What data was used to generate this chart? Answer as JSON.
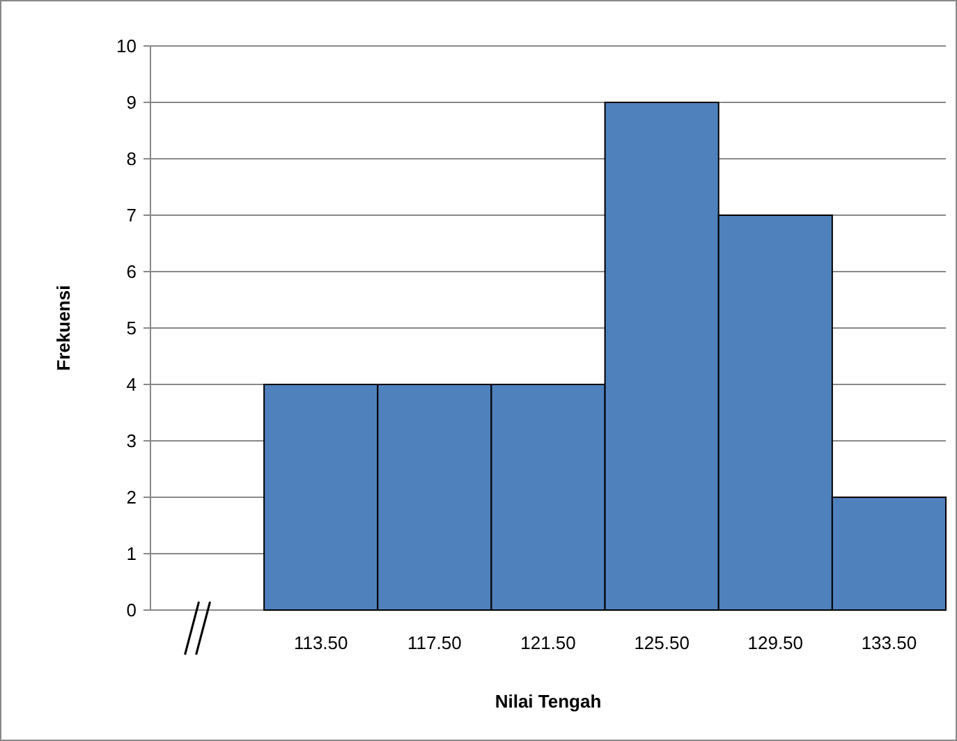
{
  "chart_data": {
    "type": "bar",
    "xlabel": "Nilai Tengah",
    "ylabel": "Frekuensi",
    "categories": [
      null,
      "113.50",
      "117.50",
      "121.50",
      "125.50",
      "129.50",
      "133.50"
    ],
    "values": [
      null,
      4,
      4,
      4,
      9,
      7,
      2
    ],
    "color": "#4f81bd",
    "ylim": [
      0,
      10
    ],
    "yticks": [
      0,
      1,
      2,
      3,
      4,
      5,
      6,
      7,
      8,
      9,
      10
    ],
    "grid": "y"
  }
}
